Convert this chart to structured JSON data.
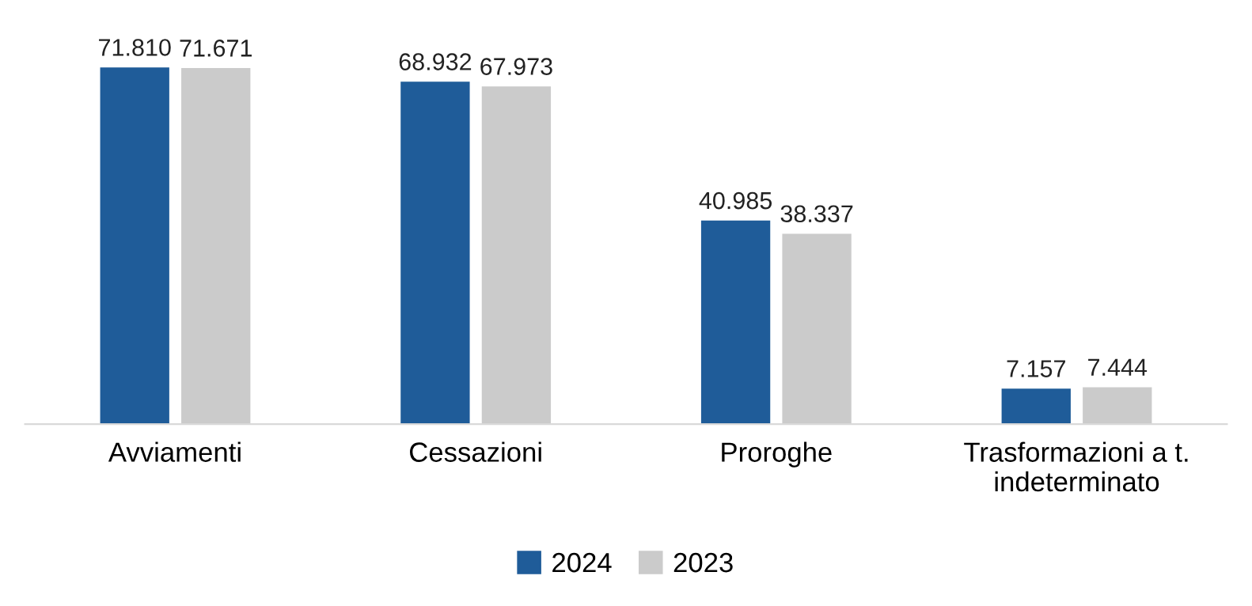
{
  "chart_data": {
    "type": "bar",
    "categories": [
      "Avviamenti",
      "Cessazioni",
      "Proroghe",
      "Trasformazioni a t.\nindeterminato"
    ],
    "series": [
      {
        "name": "2024",
        "color": "#1f5c99",
        "values": [
          71810,
          68932,
          40985,
          7157
        ],
        "value_labels": [
          "71.810",
          "68.932",
          "40.985",
          "7.157"
        ]
      },
      {
        "name": "2023",
        "color": "#cbcbcb",
        "values": [
          71671,
          67973,
          38337,
          7444
        ],
        "value_labels": [
          "71.671",
          "67.973",
          "38.337",
          "7.444"
        ]
      }
    ],
    "legend": "bottom"
  }
}
